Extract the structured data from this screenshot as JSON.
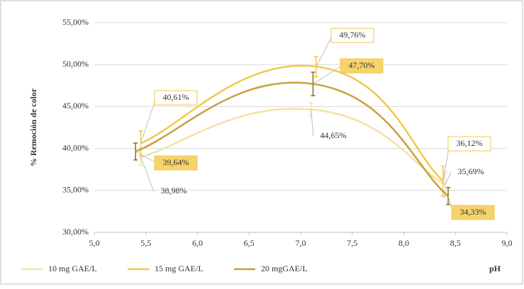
{
  "chart_data": {
    "type": "scatter-smooth",
    "y_label": "% Remoción de color",
    "x_label": "pH",
    "xlim": [
      5,
      9
    ],
    "xticks": [
      {
        "value": 5,
        "label": "5,0"
      },
      {
        "value": 5.5,
        "label": "5,5"
      },
      {
        "value": 6,
        "label": "6,0"
      },
      {
        "value": 6.5,
        "label": "6,5"
      },
      {
        "value": 7,
        "label": "7,0"
      },
      {
        "value": 7.5,
        "label": "7,5"
      },
      {
        "value": 8,
        "label": "8,0"
      },
      {
        "value": 8.5,
        "label": "8,5"
      },
      {
        "value": 9,
        "label": "9,0"
      }
    ],
    "ylim": [
      30,
      55
    ],
    "yticks": [
      {
        "value": 30,
        "label": "30,00%"
      },
      {
        "value": 35,
        "label": "35,00%"
      },
      {
        "value": 40,
        "label": "40,00%"
      },
      {
        "value": 45,
        "label": "45,00%"
      },
      {
        "value": 50,
        "label": "50,00%"
      },
      {
        "value": 55,
        "label": "55,00%"
      }
    ],
    "grid": true,
    "legend": "bottom",
    "series": [
      {
        "name": "10 mg GAE/L",
        "color": "#f5e0a8",
        "x": [
          5.45,
          7.1,
          8.4
        ],
        "values": [
          38.98,
          44.65,
          35.69
        ],
        "value_labels": [
          "38,98%",
          "44,65%",
          "35,69%"
        ],
        "errors": [
          1.0,
          0.8,
          1.5
        ]
      },
      {
        "name": "15 mg GAE/L",
        "color": "#f2c84b",
        "x": [
          5.45,
          7.15,
          8.38
        ],
        "values": [
          40.61,
          49.76,
          36.12
        ],
        "value_labels": [
          "40,61%",
          "49,76%",
          "36,12%"
        ],
        "errors": [
          1.5,
          1.2,
          1.8
        ]
      },
      {
        "name": "20 mgGAE/L",
        "color": "#c9a03c",
        "x": [
          5.4,
          7.12,
          8.43
        ],
        "values": [
          39.64,
          47.7,
          34.33
        ],
        "value_labels": [
          "39,64%",
          "47,70%",
          "34,33%"
        ],
        "errors": [
          1.0,
          1.4,
          1.0
        ]
      }
    ]
  }
}
